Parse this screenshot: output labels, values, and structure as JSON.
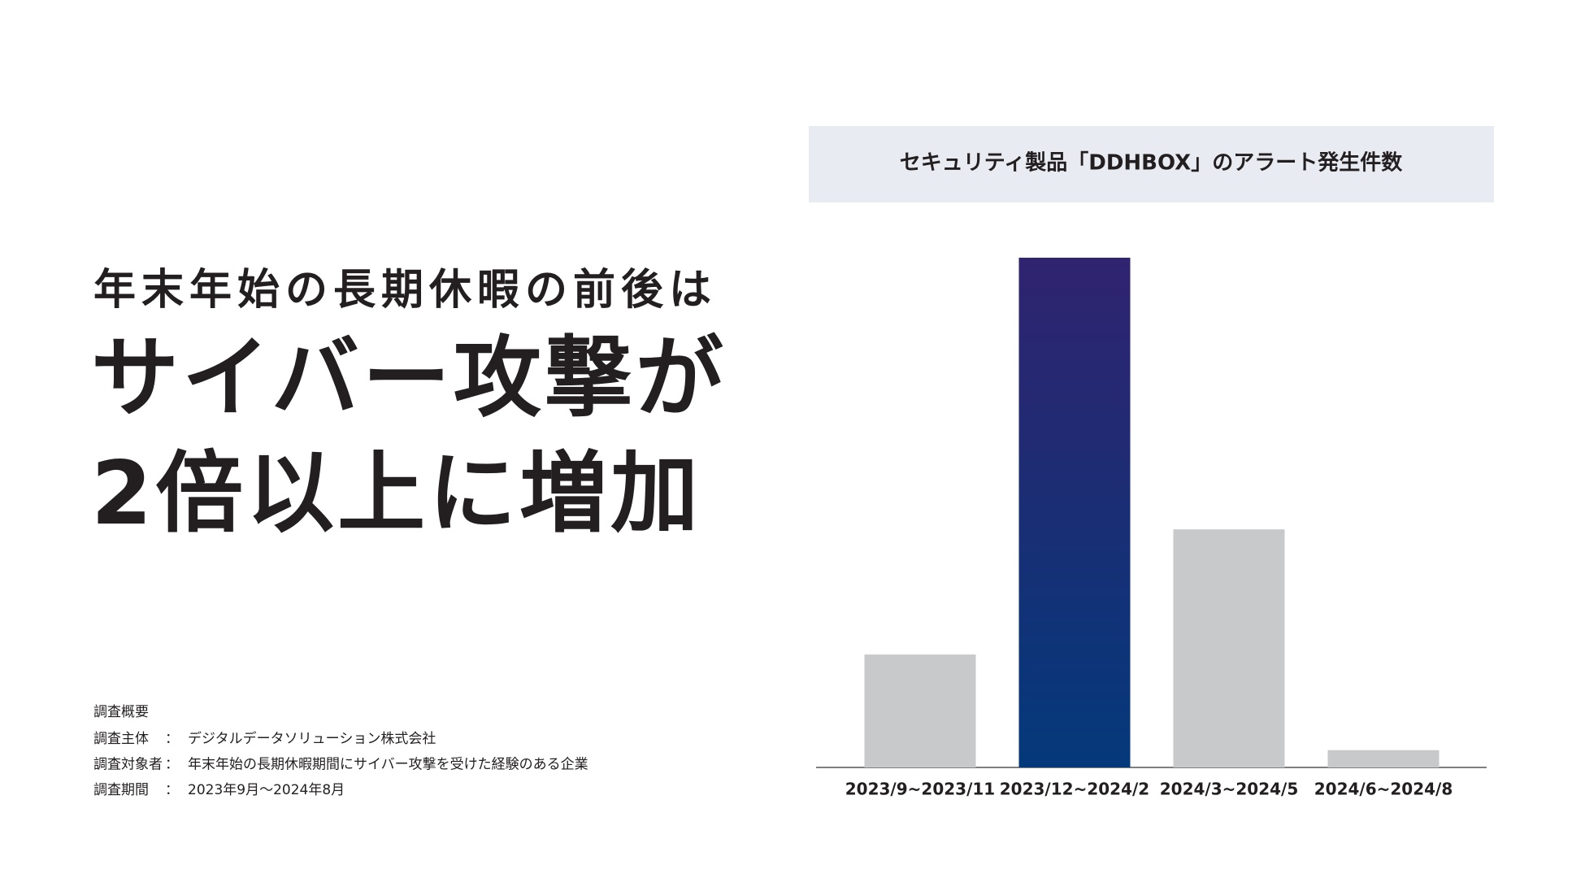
{
  "headline": {
    "lead": "年末年始の長期休暇の前後は",
    "main": [
      "サイバー攻撃が",
      "2倍以上に増加"
    ]
  },
  "survey": {
    "title": "調査概要",
    "separator": "：",
    "rows": [
      {
        "label": "調査主体",
        "value": "デジタルデータソリューション株式会社"
      },
      {
        "label": "調査対象者",
        "value": "年末年始の長期休暇期間にサイバー攻撃を受けた経験のある企業"
      },
      {
        "label": "調査期間",
        "value": "2023年9月〜2024年8月"
      }
    ]
  },
  "chart_data": {
    "type": "bar",
    "title": "セキュリティ製品「DDHBOX」のアラート発生件数",
    "categories": [
      "2023/9~2023/11",
      "2023/12~2024/2",
      "2024/3~2024/5",
      "2024/6~2024/8"
    ],
    "values": [
      111,
      501,
      234,
      17
    ],
    "colors": [
      "#c8c9cb",
      "#30236f",
      "#c8c9cb",
      "#c8c9cb"
    ],
    "gradient_ends": [
      null,
      "#04397b",
      null,
      null
    ]
  }
}
